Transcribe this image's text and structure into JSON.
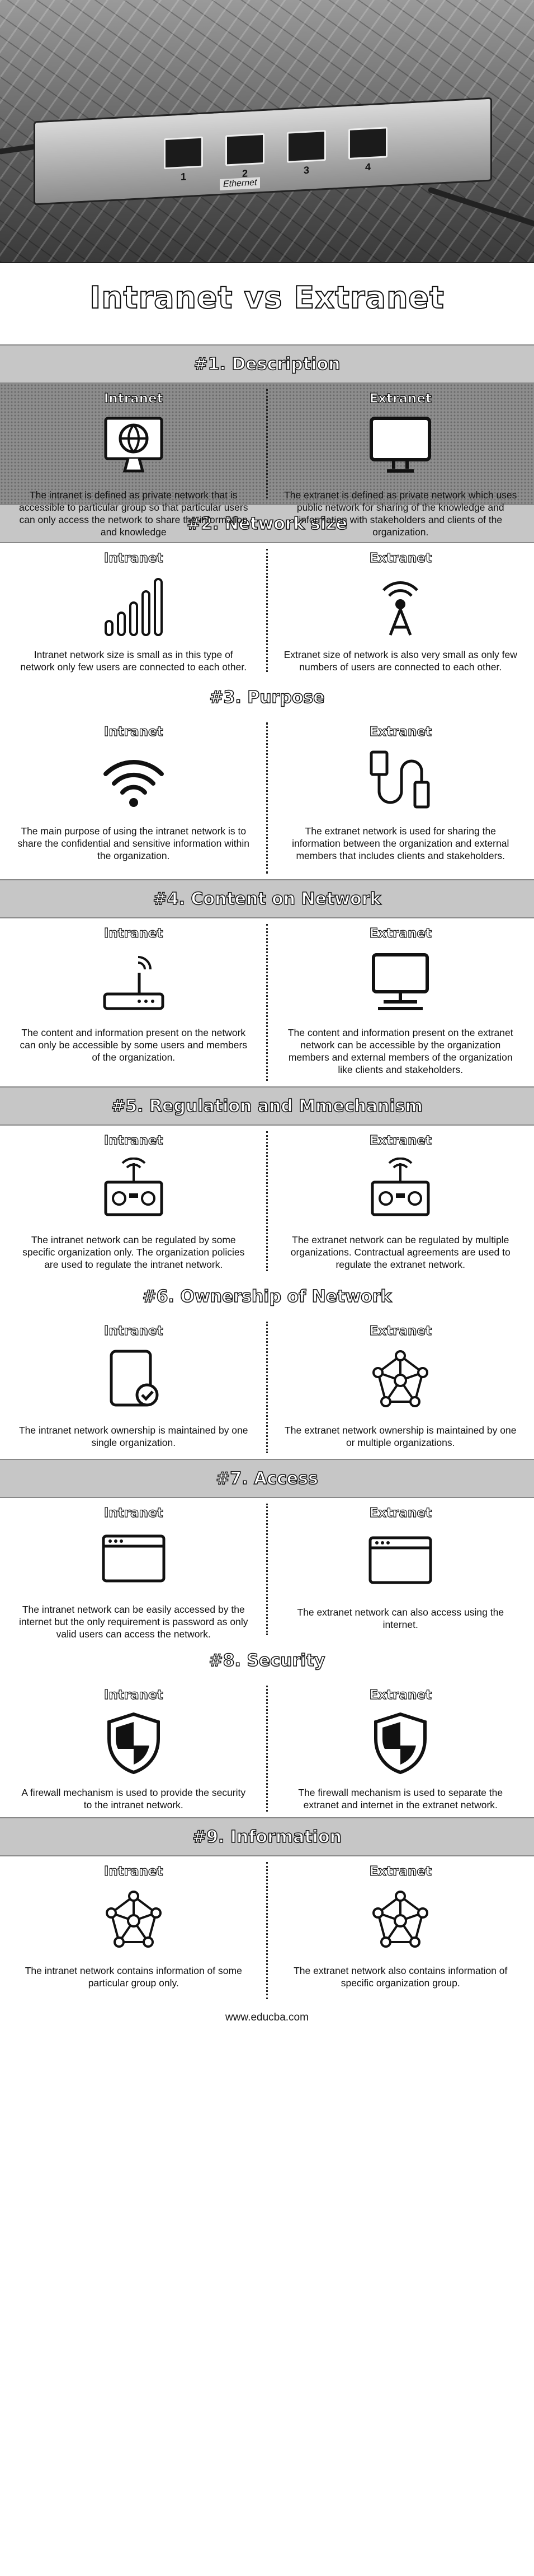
{
  "hero": {
    "port_numbers": [
      "1",
      "2",
      "3",
      "4"
    ],
    "ethernet_label": "Ethernet"
  },
  "title": "Intranet vs Extranet",
  "labels": {
    "left": "Intranet",
    "right": "Extranet"
  },
  "sections": [
    {
      "heading": "#1. Description",
      "left_text": "The intranet is defined as private network that is accessible to particular group so that particular users can only access the network to share the information and knowledge",
      "right_text": "The extranet is defined as private network which uses public network for sharing of the knowledge and information with stakeholders and clients of the organization.",
      "left_icon": "globe-monitor-icon",
      "right_icon": "monitor-icon"
    },
    {
      "heading": "#2. Network size",
      "left_text": "Intranet network size is small as in this type of network only few users are connected to each other.",
      "right_text": "Extranet size of network is also very small as only few numbers of users are connected to each other.",
      "left_icon": "signal-bars-icon",
      "right_icon": "broadcast-tower-icon"
    },
    {
      "heading": "#3. Purpose",
      "left_text": "The main purpose of using the intranet network is to share the confidential and sensitive information within the organization.",
      "right_text": "The extranet network is used for sharing the information between the organization and external members that includes clients and stakeholders.",
      "left_icon": "wifi-icon",
      "right_icon": "usb-cable-icon"
    },
    {
      "heading": "#4. Content on Network",
      "left_text": "The content and information present on the network can only be accessible by some users and members of the organization.",
      "right_text": "The content and information present on the extranet network can be accessible by the organization members and external members of the organization like clients and stakeholders.",
      "left_icon": "router-icon",
      "right_icon": "computer-icon"
    },
    {
      "heading": "#5. Regulation and Mmechanism",
      "left_text": "The intranet network can be regulated by some specific organization only. The organization policies are used to regulate the intranet network.",
      "right_text": "The extranet network can be regulated by multiple organizations. Contractual agreements are used to regulate the extranet network.",
      "left_icon": "remote-control-icon",
      "right_icon": "remote-control-icon"
    },
    {
      "heading": "#6. Ownership of Network",
      "left_text": "The intranet network ownership is maintained by one single organization.",
      "right_text": "The extranet network ownership is maintained by one or multiple organizations.",
      "left_icon": "verified-document-icon",
      "right_icon": "network-nodes-icon"
    },
    {
      "heading": "#7. Access",
      "left_text": "The intranet network can be easily accessed by the internet but the only requirement is password as only valid users can access the network.",
      "right_text": "The extranet network can also access using the internet.",
      "left_icon": "browser-window-icon",
      "right_icon": "browser-window-icon"
    },
    {
      "heading": "#8. Security",
      "left_text": "A firewall mechanism is used to provide the security to the intranet network.",
      "right_text": "The firewall mechanism is used to separate the extranet and internet in the extranet network.",
      "left_icon": "shield-icon",
      "right_icon": "shield-icon"
    },
    {
      "heading": "#9. Information",
      "left_text": "The intranet network contains information of some particular group only.",
      "right_text": "The extranet network also contains information of specific organization group.",
      "left_icon": "network-nodes-icon",
      "right_icon": "network-nodes-icon"
    }
  ],
  "footer": "www.educba.com"
}
